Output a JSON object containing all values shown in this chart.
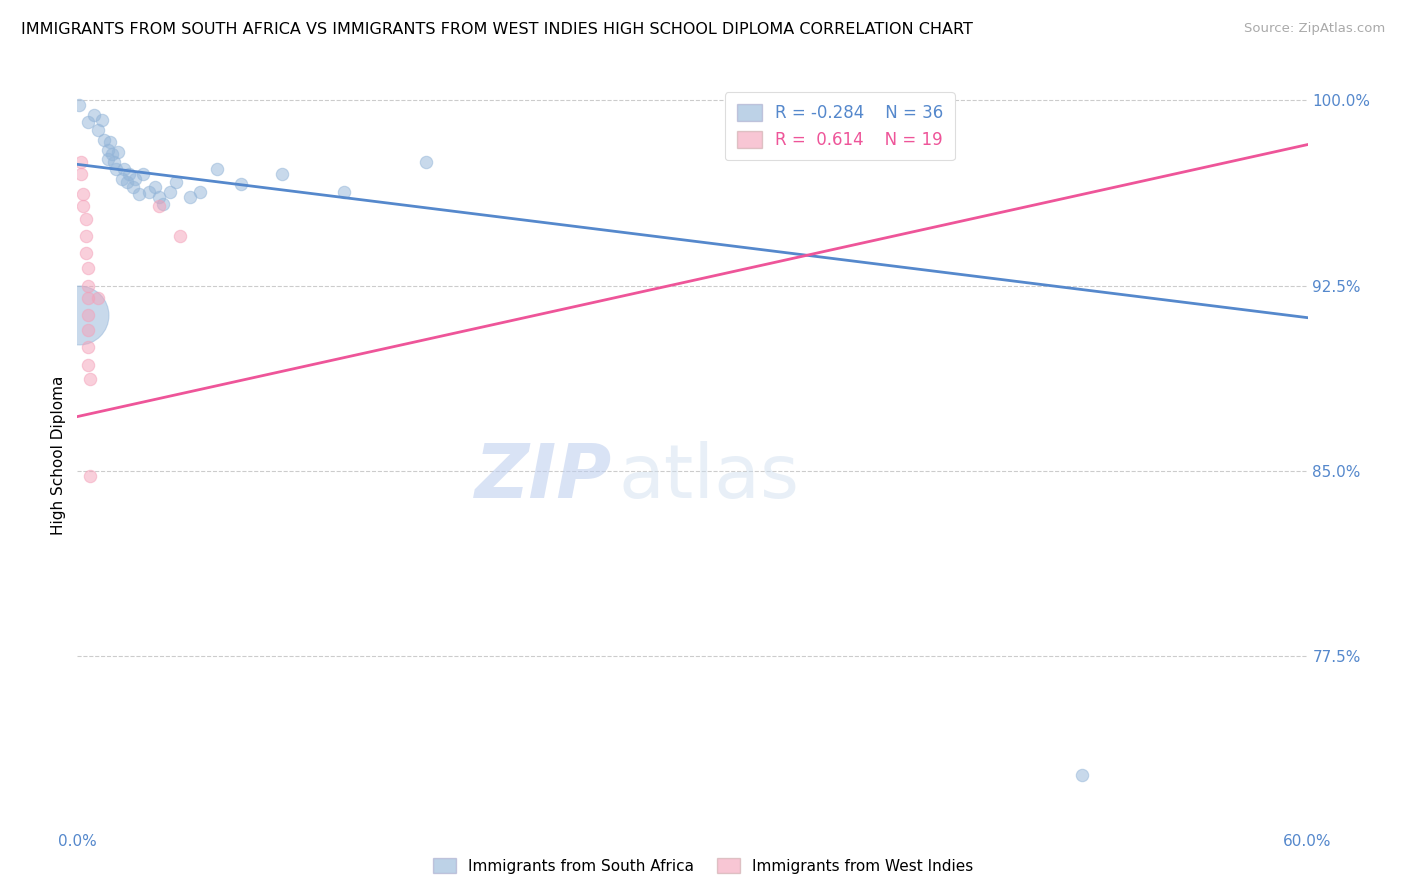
{
  "title": "IMMIGRANTS FROM SOUTH AFRICA VS IMMIGRANTS FROM WEST INDIES HIGH SCHOOL DIPLOMA CORRELATION CHART",
  "source": "Source: ZipAtlas.com",
  "ylabel": "High School Diploma",
  "xlim": [
    0.0,
    0.6
  ],
  "ylim": [
    0.705,
    1.008
  ],
  "ytick_labels": [
    "100.0%",
    "92.5%",
    "85.0%",
    "77.5%"
  ],
  "ytick_values": [
    1.0,
    0.925,
    0.85,
    0.775
  ],
  "blue_color": "#92B4D8",
  "pink_color": "#F4A0B8",
  "blue_line_color": "#5588CC",
  "pink_line_color": "#EE5599",
  "watermark_zip": "ZIP",
  "watermark_atlas": "atlas",
  "blue_line": [
    [
      0.0,
      0.974
    ],
    [
      0.6,
      0.912
    ]
  ],
  "pink_line": [
    [
      0.0,
      0.872
    ],
    [
      0.6,
      0.982
    ]
  ],
  "blue_scatter": [
    [
      0.001,
      0.998
    ],
    [
      0.005,
      0.991
    ],
    [
      0.008,
      0.994
    ],
    [
      0.01,
      0.988
    ],
    [
      0.012,
      0.992
    ],
    [
      0.013,
      0.984
    ],
    [
      0.015,
      0.98
    ],
    [
      0.015,
      0.976
    ],
    [
      0.016,
      0.983
    ],
    [
      0.017,
      0.978
    ],
    [
      0.018,
      0.975
    ],
    [
      0.019,
      0.972
    ],
    [
      0.02,
      0.979
    ],
    [
      0.022,
      0.968
    ],
    [
      0.023,
      0.972
    ],
    [
      0.024,
      0.967
    ],
    [
      0.025,
      0.97
    ],
    [
      0.027,
      0.965
    ],
    [
      0.028,
      0.968
    ],
    [
      0.03,
      0.962
    ],
    [
      0.032,
      0.97
    ],
    [
      0.035,
      0.963
    ],
    [
      0.038,
      0.965
    ],
    [
      0.04,
      0.961
    ],
    [
      0.042,
      0.958
    ],
    [
      0.045,
      0.963
    ],
    [
      0.048,
      0.967
    ],
    [
      0.055,
      0.961
    ],
    [
      0.06,
      0.963
    ],
    [
      0.068,
      0.972
    ],
    [
      0.08,
      0.966
    ],
    [
      0.1,
      0.97
    ],
    [
      0.13,
      0.963
    ],
    [
      0.17,
      0.975
    ],
    [
      0.49,
      0.727
    ],
    [
      0.001,
      0.913
    ]
  ],
  "blue_scatter_sizes": [
    80,
    80,
    80,
    80,
    80,
    80,
    80,
    80,
    80,
    80,
    80,
    80,
    80,
    80,
    80,
    80,
    80,
    80,
    80,
    80,
    80,
    80,
    80,
    80,
    80,
    80,
    80,
    80,
    80,
    80,
    80,
    80,
    80,
    80,
    80,
    1800
  ],
  "pink_scatter": [
    [
      0.002,
      0.975
    ],
    [
      0.002,
      0.97
    ],
    [
      0.003,
      0.962
    ],
    [
      0.003,
      0.957
    ],
    [
      0.004,
      0.952
    ],
    [
      0.004,
      0.945
    ],
    [
      0.004,
      0.938
    ],
    [
      0.005,
      0.932
    ],
    [
      0.005,
      0.925
    ],
    [
      0.005,
      0.92
    ],
    [
      0.005,
      0.913
    ],
    [
      0.005,
      0.907
    ],
    [
      0.005,
      0.9
    ],
    [
      0.005,
      0.893
    ],
    [
      0.006,
      0.887
    ],
    [
      0.006,
      0.848
    ],
    [
      0.01,
      0.92
    ],
    [
      0.04,
      0.957
    ],
    [
      0.05,
      0.945
    ]
  ],
  "pink_scatter_sizes": [
    80,
    80,
    80,
    80,
    80,
    80,
    80,
    80,
    80,
    80,
    80,
    80,
    80,
    80,
    80,
    80,
    80,
    80,
    80
  ]
}
